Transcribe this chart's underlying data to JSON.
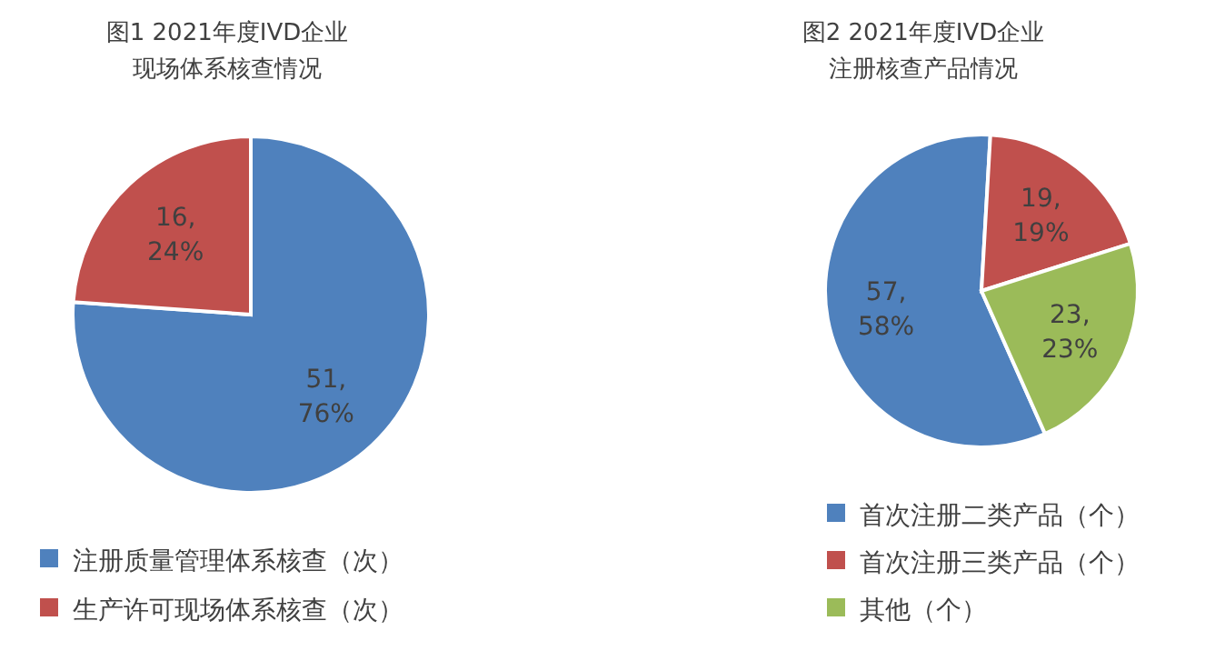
{
  "chart_data": [
    {
      "type": "pie",
      "title": "图1  2021年度IVD企业",
      "subtitle": "现场体系核查情况",
      "categories": [
        "注册质量管理体系核查（次）",
        "生产许可现场体系核查（次）"
      ],
      "values": [
        51,
        16
      ],
      "colors": [
        "#4f81bd",
        "#c0504d"
      ],
      "value_labels": [
        "51,\n76%",
        "16,\n24%"
      ],
      "legend": "bottom"
    },
    {
      "type": "pie",
      "title": "图2  2021年度IVD企业",
      "subtitle": "注册核查产品情况",
      "categories": [
        "首次注册二类产品（个）",
        "首次注册三类产品（个）",
        "其他（个）"
      ],
      "values": [
        57,
        19,
        23
      ],
      "colors": [
        "#4f81bd",
        "#c0504d",
        "#9bbb59"
      ],
      "value_labels": [
        "57,\n58%",
        "19,\n19%",
        "23,\n23%"
      ],
      "legend": "bottom"
    }
  ]
}
